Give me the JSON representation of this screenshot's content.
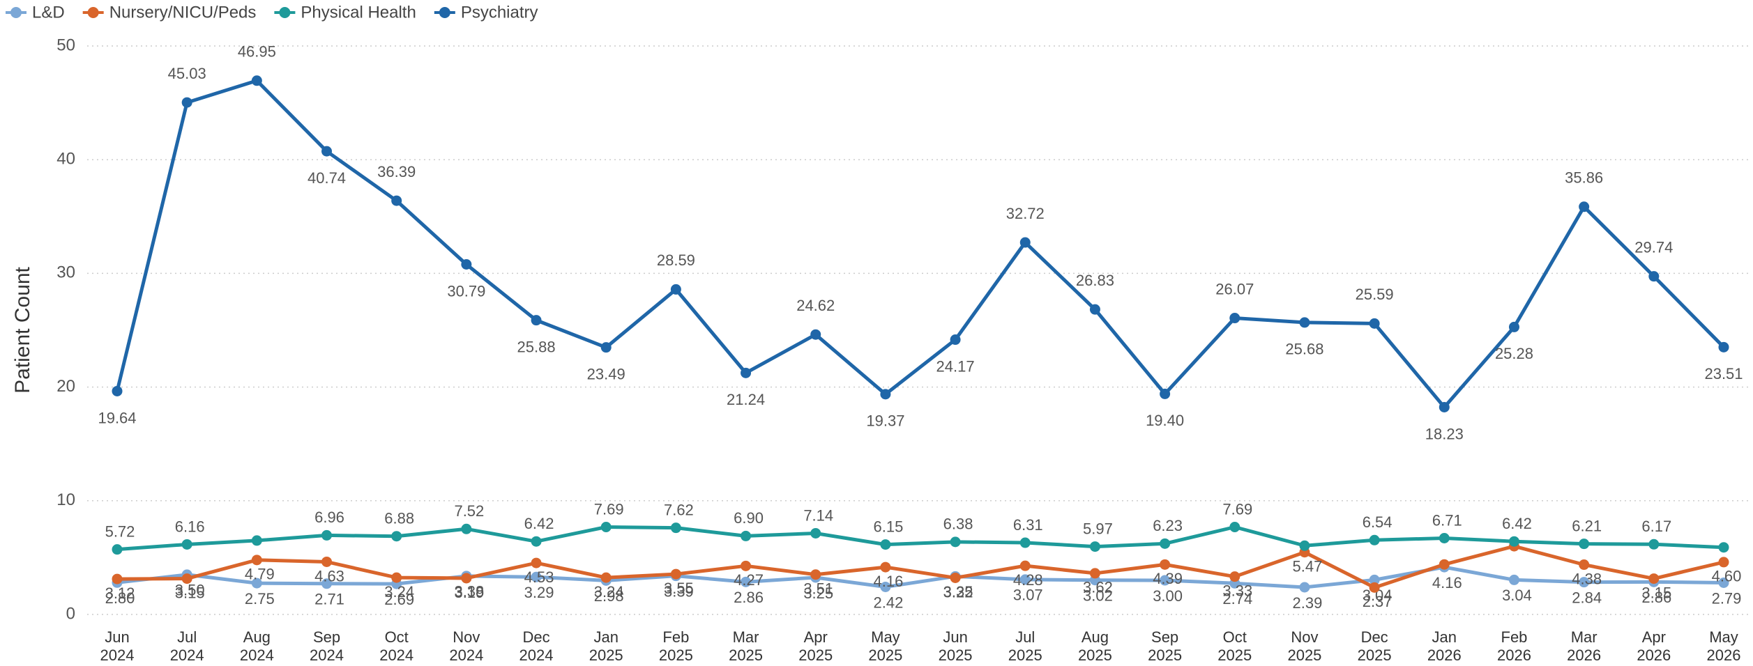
{
  "chart_data": {
    "type": "line",
    "y_label": "Patient Count",
    "legend": "top-left",
    "grid": true,
    "ylim": [
      0,
      50
    ],
    "yticks": [
      0,
      10,
      20,
      30,
      40,
      50
    ],
    "categories": [
      "Jun 2024",
      "Jul 2024",
      "Aug 2024",
      "Sep 2024",
      "Oct 2024",
      "Nov 2024",
      "Dec 2024",
      "Jan 2025",
      "Feb 2025",
      "Mar 2025",
      "Apr 2025",
      "May 2025",
      "Jun 2025",
      "Jul 2025",
      "Aug 2025",
      "Sep 2025",
      "Oct 2025",
      "Nov 2025",
      "Dec 2025",
      "Jan 2026",
      "Feb 2026",
      "Mar 2026",
      "Apr 2026",
      "May 2026"
    ],
    "series": [
      {
        "name": "L&D",
        "color": "#7ba7d6",
        "values": [
          2.8,
          3.5,
          2.75,
          2.71,
          2.69,
          3.38,
          3.29,
          2.98,
          3.39,
          2.86,
          3.25,
          2.42,
          3.35,
          3.07,
          3.02,
          3.0,
          2.74,
          2.39,
          3.04,
          4.16,
          3.04,
          2.84,
          2.86,
          2.79
        ],
        "value_labels": [
          "2.80",
          "3.50",
          "2.75",
          "2.71",
          "2.69",
          "3.38",
          "3.29",
          "2.98",
          "3.39",
          "2.86",
          "3.25",
          "2.42",
          "3.35",
          "3.07",
          "3.02",
          "3.00",
          "2.74",
          "2.39",
          "3.04",
          "4.16",
          "3.04",
          "2.84",
          "2.86",
          "2.79"
        ]
      },
      {
        "name": "Nursery/NICU/Peds",
        "color": "#d9652b",
        "values": [
          3.12,
          3.15,
          4.79,
          4.63,
          3.24,
          3.19,
          4.53,
          3.24,
          3.55,
          4.27,
          3.51,
          4.16,
          3.22,
          4.28,
          3.62,
          4.39,
          3.33,
          5.47,
          2.37,
          4.4,
          6.0,
          4.38,
          3.15,
          4.6
        ],
        "value_labels": [
          "3.12",
          "3.15",
          "4.79",
          "4.63",
          "3.24",
          "3.19",
          "4.53",
          "3.24",
          "3.55",
          "4.27",
          "3.51",
          "4.16",
          "3.22",
          "4.28",
          "3.62",
          "4.39",
          "3.33",
          "5.47",
          "2.37",
          null,
          null,
          "4.38",
          "3.15",
          "4.60"
        ]
      },
      {
        "name": "Physical Health",
        "color": "#1e9a9a",
        "values": [
          5.72,
          6.16,
          6.5,
          6.96,
          6.88,
          7.52,
          6.42,
          7.69,
          7.62,
          6.9,
          7.14,
          6.15,
          6.38,
          6.31,
          5.97,
          6.23,
          7.69,
          6.05,
          6.54,
          6.71,
          6.42,
          6.21,
          6.17,
          5.9
        ],
        "value_labels": [
          "5.72",
          "6.16",
          null,
          "6.96",
          "6.88",
          "7.52",
          "6.42",
          "7.69",
          "7.62",
          "6.90",
          "7.14",
          "6.15",
          "6.38",
          "6.31",
          "5.97",
          "6.23",
          "7.69",
          null,
          "6.54",
          "6.71",
          "6.42",
          "6.21",
          "6.17",
          null
        ]
      },
      {
        "name": "Psychiatry",
        "color": "#1f66a8",
        "values": [
          19.64,
          45.03,
          46.95,
          40.74,
          36.39,
          30.79,
          25.88,
          23.49,
          28.59,
          21.24,
          24.62,
          19.37,
          24.17,
          32.72,
          26.83,
          19.4,
          26.07,
          25.68,
          25.59,
          18.23,
          25.28,
          35.86,
          29.74,
          23.51
        ],
        "value_labels": [
          "19.64",
          "45.03",
          "46.95",
          "40.74",
          "36.39",
          "30.79",
          "25.88",
          "23.49",
          "28.59",
          "21.24",
          "24.62",
          "19.37",
          "24.17",
          "32.72",
          "26.83",
          "19.40",
          "26.07",
          "25.68",
          "25.59",
          "18.23",
          "25.28",
          "35.86",
          "29.74",
          "23.51"
        ]
      }
    ]
  }
}
